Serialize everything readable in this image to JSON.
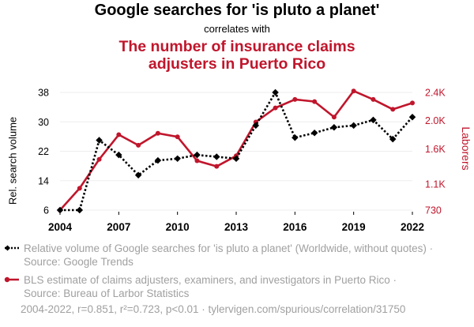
{
  "header": {
    "title": "Google searches for 'is pluto a planet'",
    "connector": "correlates with",
    "title2": "The number of insurance claims adjusters in Puerto Rico"
  },
  "chart_data": {
    "type": "line",
    "x": [
      2004,
      2005,
      2006,
      2007,
      2008,
      2009,
      2010,
      2011,
      2012,
      2013,
      2014,
      2015,
      2016,
      2017,
      2018,
      2019,
      2020,
      2021,
      2022
    ],
    "x_ticks": [
      "2004",
      "2007",
      "2010",
      "2013",
      "2016",
      "2019",
      "2022"
    ],
    "xlim": [
      2004,
      2022
    ],
    "series": [
      {
        "name": "Relative volume of Google searches for 'is pluto a planet' (Worldwide, without quotes) · Source: Google Trends",
        "axis": "left",
        "color": "#000000",
        "style": "dotted",
        "values": [
          6,
          6,
          25,
          21,
          15.5,
          19.5,
          20,
          21,
          20.5,
          20,
          29,
          38,
          25.7,
          27,
          28.5,
          29,
          30.5,
          25.3,
          31.3
        ]
      },
      {
        "name": "BLS estimate of claims adjusters, examiners, and investigators in Puerto Rico · Source: Bureau of Larbor Statistics",
        "axis": "right",
        "color": "#c0162c",
        "style": "solid",
        "values": [
          730,
          1040,
          1450,
          1800,
          1650,
          1820,
          1770,
          1430,
          1350,
          1500,
          1980,
          2180,
          2300,
          2270,
          2050,
          2420,
          2300,
          2160,
          2250
        ]
      }
    ],
    "y_left": {
      "label": "Rel. search volume",
      "ticks": [
        6,
        14,
        22,
        30,
        38
      ],
      "lim": [
        6,
        38
      ]
    },
    "y_right": {
      "label": "Laborers",
      "ticks": [
        730,
        1100,
        1600,
        2000,
        2400
      ],
      "tick_labels": [
        "730",
        "1.1K",
        "1.6K",
        "2.0K",
        "2.4K"
      ],
      "lim": [
        730,
        2400
      ]
    }
  },
  "legend": {
    "series1": "Relative volume of Google searches for 'is pluto a planet' (Worldwide, without quotes) · Source: Google Trends",
    "series2": "BLS estimate of claims adjusters, examiners, and investigators in Puerto Rico · Source: Bureau of Larbor Statistics"
  },
  "footer": "2004-2022, r=0.851, r²=0.723, p<0.01 · tylervigen.com/spurious/correlation/31750"
}
